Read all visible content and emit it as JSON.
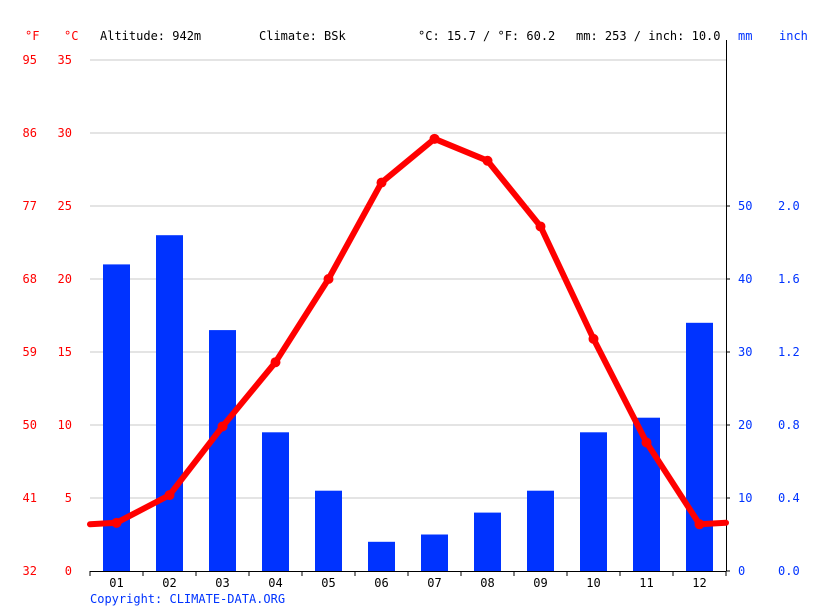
{
  "header": {
    "unit_f": "°F",
    "unit_c": "°C",
    "altitude": "Altitude: 942m",
    "climate": "Climate: BSk",
    "temp_avg": "°C: 15.7 / °F: 60.2",
    "precip_total": "mm: 253 / inch: 10.0",
    "unit_mm": "mm",
    "unit_inch": "inch"
  },
  "footer": {
    "copyright": "Copyright: CLIMATE-DATA.ORG"
  },
  "colors": {
    "temp": "#ff0000",
    "precip": "#0033ff",
    "grid": "#c8c8c8"
  },
  "chart_data": {
    "type": "bar+line",
    "categories": [
      "01",
      "02",
      "03",
      "04",
      "05",
      "06",
      "07",
      "08",
      "09",
      "10",
      "11",
      "12"
    ],
    "series": [
      {
        "type": "bar",
        "axis": "right",
        "values": [
          42,
          46,
          33,
          19,
          11,
          4,
          5,
          8,
          11,
          19,
          21,
          34
        ]
      },
      {
        "type": "line",
        "axis": "left",
        "values": [
          3.3,
          5.2,
          9.9,
          14.3,
          20.0,
          26.6,
          29.6,
          28.1,
          23.6,
          15.9,
          8.8,
          3.2
        ],
        "edge_values": [
          3.2,
          3.3
        ]
      }
    ],
    "y_left_c": {
      "min": 0,
      "max": 35,
      "ticks": [
        "0",
        "5",
        "10",
        "15",
        "20",
        "25",
        "30",
        "35"
      ]
    },
    "y_left_f": {
      "ticks": [
        "32",
        "41",
        "50",
        "59",
        "68",
        "77",
        "86",
        "95"
      ]
    },
    "y_right_mm": {
      "min": 0,
      "max": 70,
      "ticks": [
        "0",
        "10",
        "20",
        "30",
        "40",
        "50"
      ]
    },
    "y_right_inch": {
      "ticks": [
        "0.0",
        "0.4",
        "0.8",
        "1.2",
        "1.6",
        "2.0"
      ]
    },
    "grid": true
  }
}
